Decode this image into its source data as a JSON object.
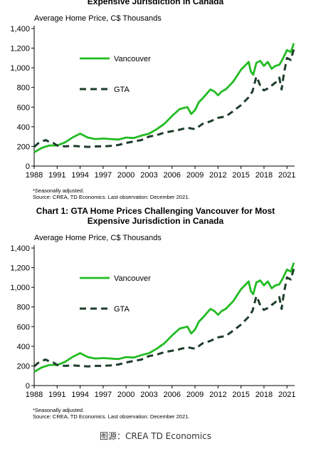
{
  "top_partial_title": "Expensive Jurisdiction in Canada",
  "caption": "图源：CREA TD Economics",
  "colors": {
    "vancouver": "#22bb22",
    "gta": "#1f3d2b"
  },
  "chart_data": [
    {
      "type": "line",
      "title": "",
      "ylabel": "Average Home Price, C$ Thousands",
      "xlabel": "",
      "ylim": [
        0,
        1400
      ],
      "xlim": [
        1988,
        2022
      ],
      "yticks": [
        "0",
        "200",
        "400",
        "600",
        "800",
        "1,000",
        "1,200",
        "1,400"
      ],
      "xticks": [
        "1988",
        "1991",
        "1994",
        "1997",
        "2000",
        "2003",
        "2006",
        "2009",
        "2012",
        "2015",
        "2018",
        "2021"
      ],
      "legend": "inside-left",
      "series": [
        {
          "name": "Vancouver",
          "x": [
            1988,
            1989,
            1990,
            1991,
            1992,
            1993,
            1994,
            1995,
            1996,
            1997,
            1998,
            1999,
            2000,
            2001,
            2002,
            2003,
            2004,
            2005,
            2006,
            2007,
            2008,
            2008.5,
            2009,
            2009.5,
            2010,
            2011,
            2011.5,
            2012,
            2012.5,
            2013,
            2014,
            2015,
            2016,
            2016.3,
            2016.6,
            2017,
            2017.5,
            2018,
            2018.5,
            2019,
            2019.5,
            2020,
            2020.5,
            2021,
            2021.5,
            2021.9
          ],
          "values": [
            140,
            185,
            210,
            210,
            240,
            290,
            330,
            290,
            275,
            280,
            275,
            270,
            290,
            285,
            310,
            330,
            375,
            430,
            510,
            580,
            600,
            530,
            570,
            650,
            690,
            780,
            760,
            720,
            760,
            780,
            860,
            980,
            1060,
            960,
            930,
            1050,
            1070,
            1020,
            1060,
            990,
            1020,
            1030,
            1100,
            1180,
            1160,
            1250
          ]
        },
        {
          "name": "GTA",
          "x": [
            1988,
            1988.5,
            1989,
            1989.5,
            1990,
            1990.5,
            1991,
            1992,
            1993,
            1994,
            1995,
            1996,
            1997,
            1998,
            1999,
            2000,
            2001,
            2002,
            2003,
            2004,
            2005,
            2006,
            2007,
            2008,
            2009,
            2010,
            2011,
            2012,
            2013,
            2014,
            2015,
            2016,
            2016.5,
            2017,
            2017.3,
            2017.6,
            2018,
            2018.5,
            2019,
            2019.5,
            2020,
            2020.3,
            2020.6,
            2021,
            2021.5,
            2021.9
          ],
          "values": [
            195,
            230,
            250,
            265,
            245,
            235,
            210,
            200,
            205,
            200,
            195,
            200,
            200,
            205,
            215,
            235,
            250,
            265,
            300,
            315,
            340,
            355,
            370,
            390,
            375,
            430,
            455,
            490,
            505,
            560,
            620,
            700,
            760,
            910,
            860,
            800,
            770,
            790,
            820,
            850,
            900,
            780,
            940,
            1100,
            1080,
            1190
          ]
        }
      ]
    },
    {
      "type": "line",
      "title": "Chart 1: GTA Home Prices Challenging Vancouver for Most Expensive Jurisdiction in Canada",
      "ylabel": "Average Home Price, C$ Thousands",
      "xlabel": "",
      "ylim": [
        0,
        1400
      ],
      "xlim": [
        1988,
        2022
      ],
      "yticks": [
        "0",
        "200",
        "400",
        "600",
        "800",
        "1,000",
        "1,200",
        "1,400"
      ],
      "xticks": [
        "1988",
        "1991",
        "1994",
        "1997",
        "2000",
        "2003",
        "2006",
        "2009",
        "2012",
        "2015",
        "2018",
        "2021"
      ],
      "legend": "inside-left",
      "series": [
        {
          "name": "Vancouver",
          "x": [
            1988,
            1989,
            1990,
            1991,
            1992,
            1993,
            1994,
            1995,
            1996,
            1997,
            1998,
            1999,
            2000,
            2001,
            2002,
            2003,
            2004,
            2005,
            2006,
            2007,
            2008,
            2008.5,
            2009,
            2009.5,
            2010,
            2011,
            2011.5,
            2012,
            2012.5,
            2013,
            2014,
            2015,
            2016,
            2016.3,
            2016.6,
            2017,
            2017.5,
            2018,
            2018.5,
            2019,
            2019.5,
            2020,
            2020.5,
            2021,
            2021.5,
            2021.9
          ],
          "values": [
            140,
            185,
            210,
            210,
            240,
            290,
            330,
            290,
            275,
            280,
            275,
            270,
            290,
            285,
            310,
            330,
            375,
            430,
            510,
            580,
            600,
            530,
            570,
            650,
            690,
            780,
            760,
            720,
            760,
            780,
            860,
            980,
            1060,
            960,
            930,
            1050,
            1070,
            1020,
            1060,
            990,
            1020,
            1030,
            1100,
            1180,
            1160,
            1250
          ]
        },
        {
          "name": "GTA",
          "x": [
            1988,
            1988.5,
            1989,
            1989.5,
            1990,
            1990.5,
            1991,
            1992,
            1993,
            1994,
            1995,
            1996,
            1997,
            1998,
            1999,
            2000,
            2001,
            2002,
            2003,
            2004,
            2005,
            2006,
            2007,
            2008,
            2009,
            2010,
            2011,
            2012,
            2013,
            2014,
            2015,
            2016,
            2016.5,
            2017,
            2017.3,
            2017.6,
            2018,
            2018.5,
            2019,
            2019.5,
            2020,
            2020.3,
            2020.6,
            2021,
            2021.5,
            2021.9
          ],
          "values": [
            195,
            230,
            250,
            265,
            245,
            235,
            210,
            200,
            205,
            200,
            195,
            200,
            200,
            205,
            215,
            235,
            250,
            265,
            300,
            315,
            340,
            355,
            370,
            390,
            375,
            430,
            455,
            490,
            505,
            560,
            620,
            700,
            760,
            910,
            860,
            800,
            770,
            790,
            820,
            850,
            900,
            780,
            940,
            1100,
            1080,
            1190
          ]
        }
      ],
      "notes": [
        "*Seasonally  adjusted.",
        "Source: CREA,  TD Economics.  Last observation: December 2021."
      ]
    }
  ]
}
